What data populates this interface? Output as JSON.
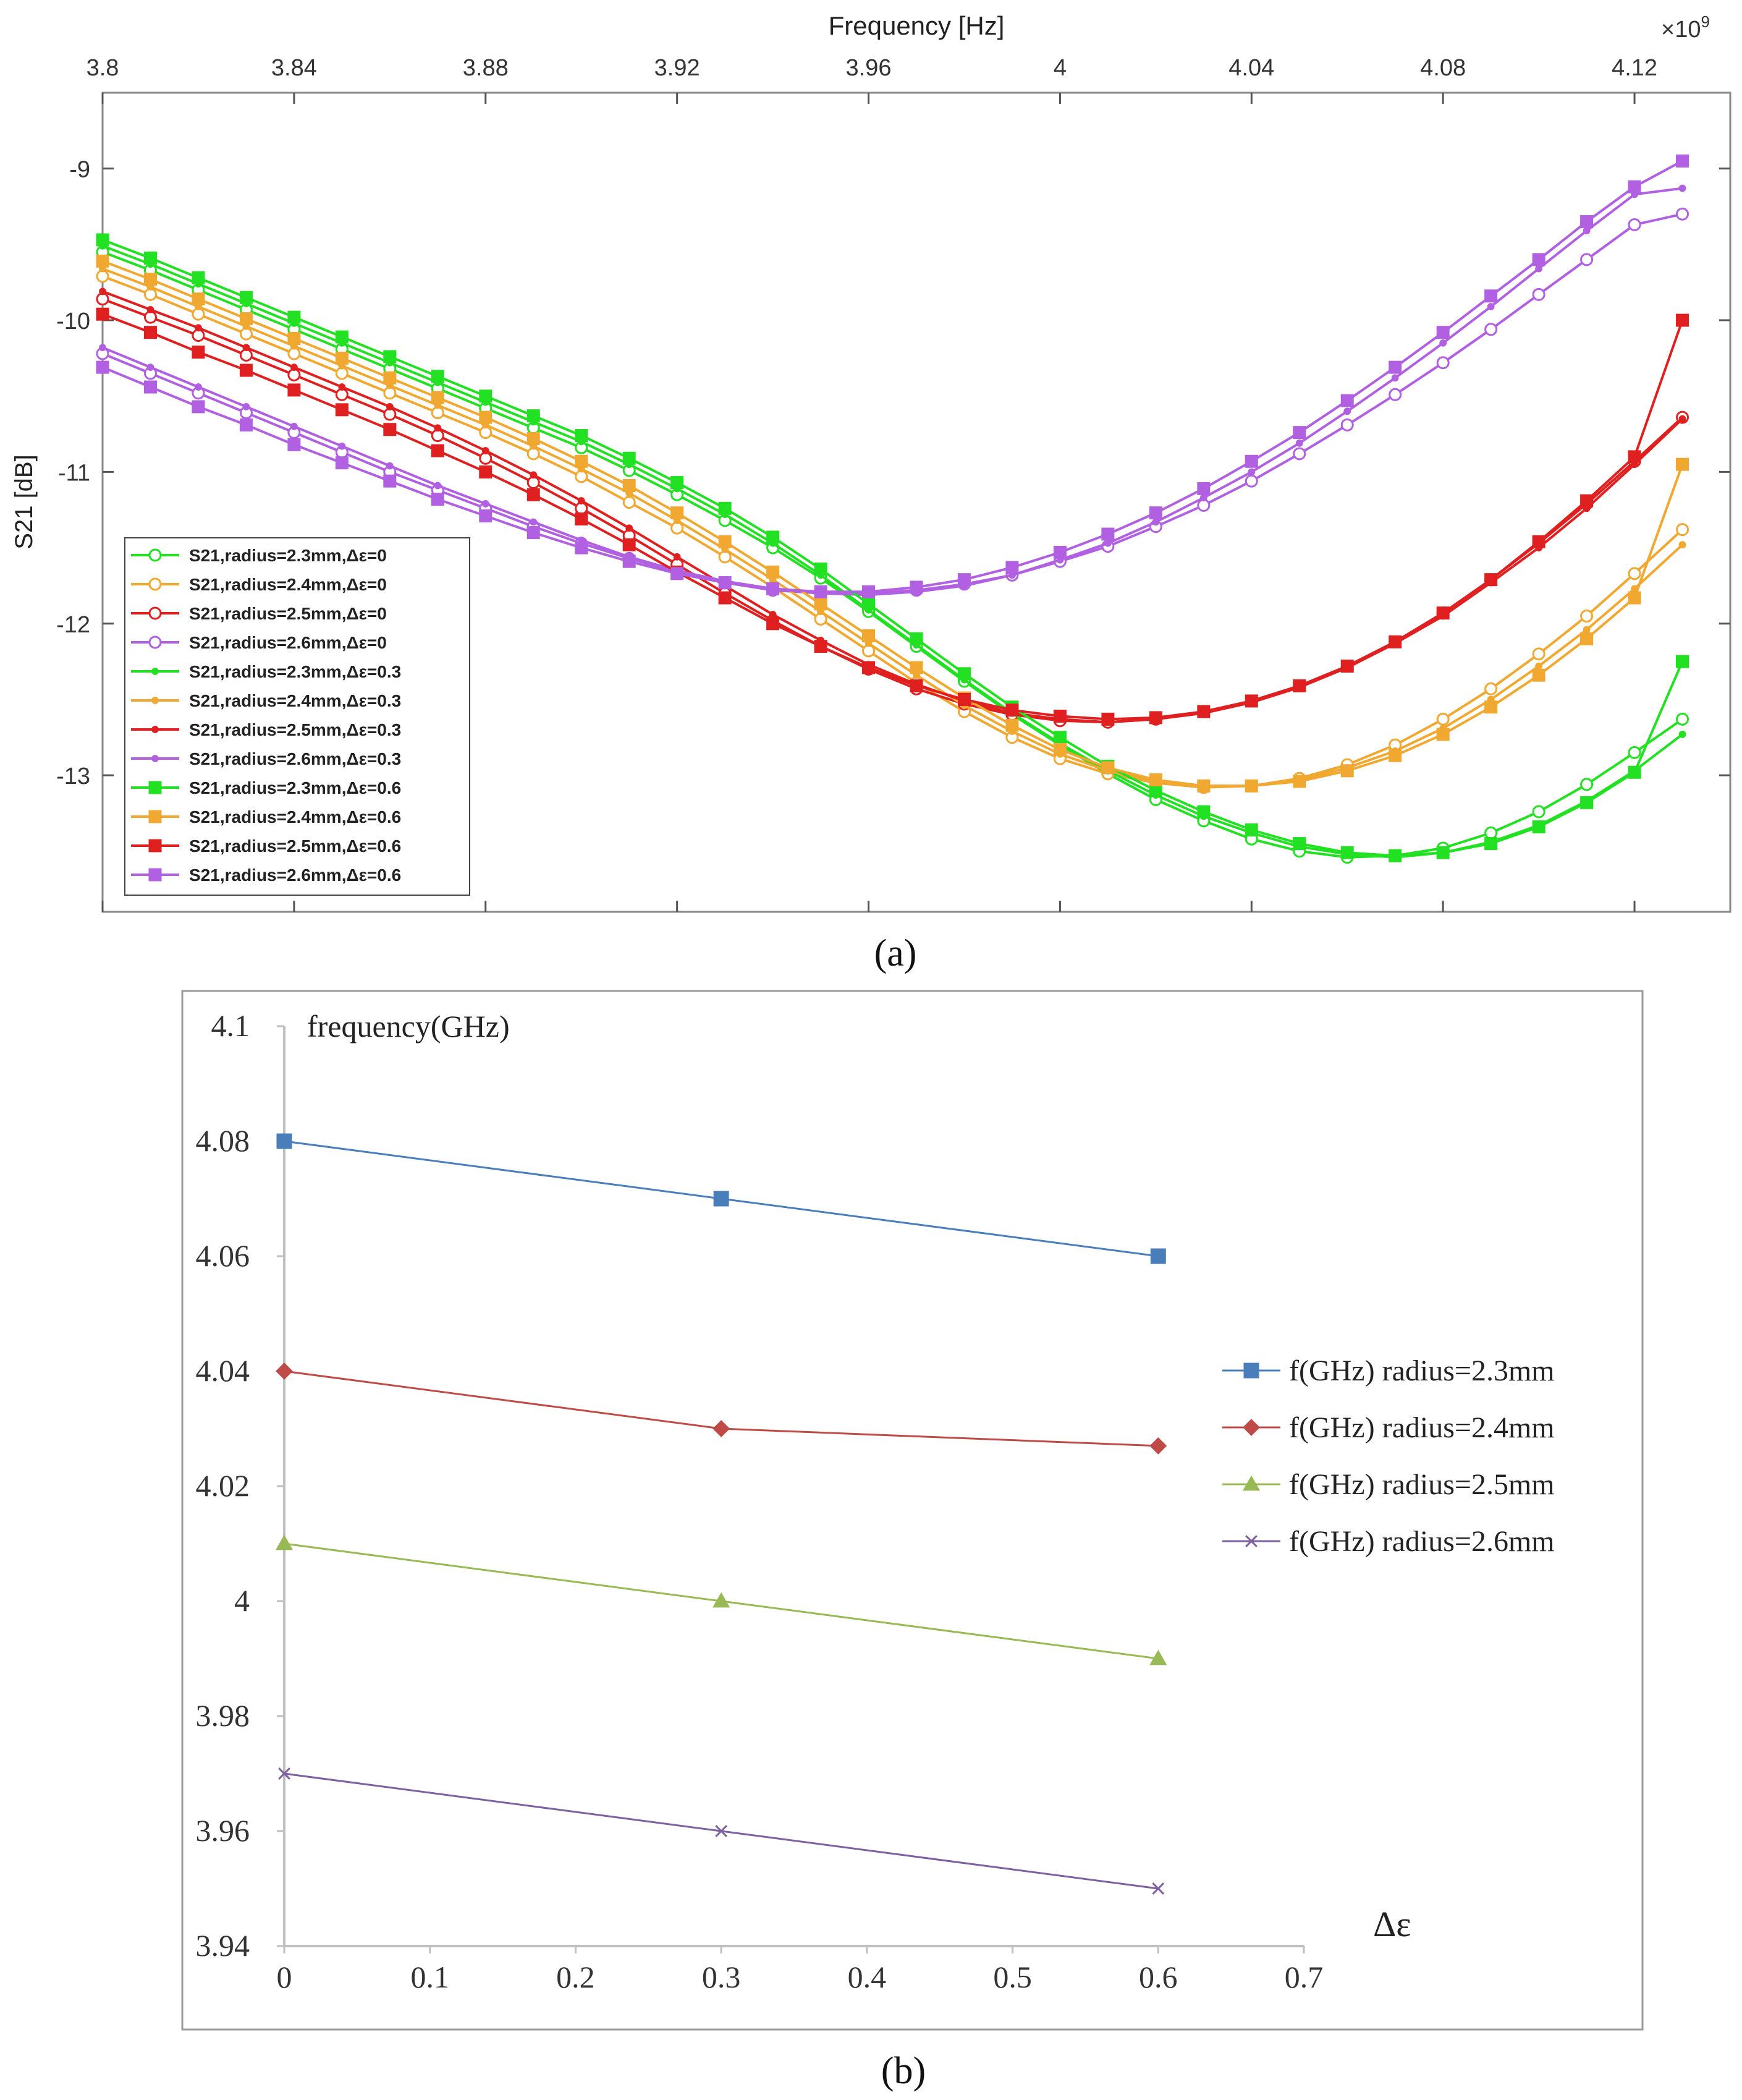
{
  "chart_data": [
    {
      "panel": "(a)",
      "type": "line",
      "xlabel": "Frequency [Hz]",
      "ylabel": "S21 [dB]",
      "x_multiplier_label": "×10",
      "x_multiplier_exp": "9",
      "xlim": [
        3.8,
        4.14
      ],
      "ylim": [
        -13.9,
        -8.5
      ],
      "x_ticks": [
        "3.8",
        "3.84",
        "3.88",
        "3.92",
        "3.96",
        "4",
        "4.04",
        "4.08",
        "4.12"
      ],
      "y_ticks": [
        "-9",
        "-10",
        "-11",
        "-12",
        "-13"
      ],
      "grid": false,
      "legend_position": "bottom-left",
      "x_start": 3.8,
      "x_step": 0.01,
      "series": [
        {
          "name": "S21,radius=2.3mm,Δε=0",
          "color": "#22e022",
          "marker": "circle",
          "values": [
            -9.55,
            -9.67,
            -9.8,
            -9.93,
            -10.06,
            -10.19,
            -10.32,
            -10.45,
            -10.58,
            -10.71,
            -10.84,
            -10.99,
            -11.15,
            -11.32,
            -11.5,
            -11.7,
            -11.92,
            -12.15,
            -12.38,
            -12.6,
            -12.8,
            -12.99,
            -13.16,
            -13.3,
            -13.42,
            -13.5,
            -13.54,
            -13.53,
            -13.48,
            -13.38,
            -13.24,
            -13.06,
            -12.85,
            -12.63
          ]
        },
        {
          "name": "S21,radius=2.4mm,Δε=0",
          "color": "#f0a830",
          "marker": "circle",
          "values": [
            -9.71,
            -9.83,
            -9.96,
            -10.09,
            -10.22,
            -10.35,
            -10.48,
            -10.61,
            -10.74,
            -10.88,
            -11.03,
            -11.2,
            -11.37,
            -11.56,
            -11.76,
            -11.97,
            -12.18,
            -12.39,
            -12.58,
            -12.75,
            -12.89,
            -12.99,
            -13.05,
            -13.08,
            -13.07,
            -13.02,
            -12.93,
            -12.8,
            -12.63,
            -12.43,
            -12.2,
            -11.95,
            -11.67,
            -11.38
          ]
        },
        {
          "name": "S21,radius=2.5mm,Δε=0",
          "color": "#e02020",
          "marker": "circle",
          "values": [
            -9.86,
            -9.98,
            -10.1,
            -10.23,
            -10.36,
            -10.49,
            -10.62,
            -10.76,
            -10.91,
            -11.07,
            -11.24,
            -11.42,
            -11.61,
            -11.8,
            -11.98,
            -12.15,
            -12.3,
            -12.43,
            -12.53,
            -12.6,
            -12.64,
            -12.65,
            -12.63,
            -12.58,
            -12.51,
            -12.41,
            -12.28,
            -12.12,
            -11.93,
            -11.71,
            -11.47,
            -11.21,
            -10.93,
            -10.64
          ]
        },
        {
          "name": "S21,radius=2.6mm,Δε=0",
          "color": "#b060e0",
          "marker": "circle",
          "values": [
            -10.22,
            -10.35,
            -10.48,
            -10.61,
            -10.74,
            -10.87,
            -11.0,
            -11.12,
            -11.24,
            -11.36,
            -11.47,
            -11.57,
            -11.66,
            -11.73,
            -11.78,
            -11.8,
            -11.8,
            -11.78,
            -11.74,
            -11.68,
            -11.59,
            -11.49,
            -11.36,
            -11.22,
            -11.06,
            -10.88,
            -10.69,
            -10.49,
            -10.28,
            -10.06,
            -9.83,
            -9.6,
            -9.37,
            -9.3
          ]
        },
        {
          "name": "S21,radius=2.3mm,Δε=0.3",
          "color": "#22e022",
          "marker": "dot",
          "values": [
            -9.51,
            -9.63,
            -9.76,
            -9.89,
            -10.02,
            -10.15,
            -10.28,
            -10.41,
            -10.54,
            -10.67,
            -10.8,
            -10.95,
            -11.11,
            -11.28,
            -11.47,
            -11.68,
            -11.91,
            -12.14,
            -12.37,
            -12.59,
            -12.79,
            -12.97,
            -13.13,
            -13.27,
            -13.38,
            -13.47,
            -13.52,
            -13.54,
            -13.51,
            -13.44,
            -13.33,
            -13.17,
            -12.97,
            -12.73
          ]
        },
        {
          "name": "S21,radius=2.4mm,Δε=0.3",
          "color": "#f0a830",
          "marker": "dot",
          "values": [
            -9.66,
            -9.78,
            -9.91,
            -10.04,
            -10.17,
            -10.3,
            -10.43,
            -10.56,
            -10.69,
            -10.83,
            -10.98,
            -11.14,
            -11.32,
            -11.51,
            -11.71,
            -11.92,
            -12.13,
            -12.34,
            -12.54,
            -12.71,
            -12.86,
            -12.97,
            -13.04,
            -13.07,
            -13.07,
            -13.03,
            -12.95,
            -12.84,
            -12.69,
            -12.5,
            -12.28,
            -12.04,
            -11.77,
            -11.48
          ]
        },
        {
          "name": "S21,radius=2.5mm,Δε=0.3",
          "color": "#e02020",
          "marker": "dot",
          "values": [
            -9.81,
            -9.93,
            -10.05,
            -10.18,
            -10.31,
            -10.44,
            -10.57,
            -10.71,
            -10.86,
            -11.02,
            -11.19,
            -11.37,
            -11.56,
            -11.75,
            -11.94,
            -12.11,
            -12.27,
            -12.4,
            -12.51,
            -12.59,
            -12.63,
            -12.65,
            -12.63,
            -12.59,
            -12.52,
            -12.42,
            -12.29,
            -12.13,
            -11.95,
            -11.73,
            -11.5,
            -11.24,
            -10.95,
            -10.65
          ]
        },
        {
          "name": "S21,radius=2.6mm,Δε=0.3",
          "color": "#b060e0",
          "marker": "dot",
          "values": [
            -10.18,
            -10.31,
            -10.44,
            -10.57,
            -10.7,
            -10.83,
            -10.96,
            -11.09,
            -11.21,
            -11.33,
            -11.45,
            -11.56,
            -11.65,
            -11.72,
            -11.77,
            -11.8,
            -11.81,
            -11.79,
            -11.75,
            -11.68,
            -11.58,
            -11.47,
            -11.33,
            -11.17,
            -11.0,
            -10.81,
            -10.6,
            -10.38,
            -10.15,
            -9.91,
            -9.66,
            -9.41,
            -9.17,
            -9.13
          ]
        },
        {
          "name": "S21,radius=2.3mm,Δε=0.6",
          "color": "#22e022",
          "marker": "square",
          "values": [
            -9.47,
            -9.59,
            -9.72,
            -9.85,
            -9.98,
            -10.11,
            -10.24,
            -10.37,
            -10.5,
            -10.63,
            -10.76,
            -10.91,
            -11.07,
            -11.24,
            -11.43,
            -11.64,
            -11.87,
            -12.1,
            -12.33,
            -12.55,
            -12.75,
            -12.94,
            -13.1,
            -13.24,
            -13.36,
            -13.45,
            -13.51,
            -13.53,
            -13.51,
            -13.45,
            -13.34,
            -13.18,
            -12.98,
            -12.25
          ]
        },
        {
          "name": "S21,radius=2.4mm,Δε=0.6",
          "color": "#f0a830",
          "marker": "square",
          "values": [
            -9.61,
            -9.73,
            -9.86,
            -9.99,
            -10.12,
            -10.25,
            -10.38,
            -10.51,
            -10.64,
            -10.78,
            -10.93,
            -11.09,
            -11.27,
            -11.46,
            -11.66,
            -11.87,
            -12.08,
            -12.29,
            -12.49,
            -12.67,
            -12.83,
            -12.95,
            -13.03,
            -13.07,
            -13.07,
            -13.04,
            -12.97,
            -12.87,
            -12.73,
            -12.55,
            -12.34,
            -12.1,
            -11.83,
            -10.95
          ]
        },
        {
          "name": "S21,radius=2.5mm,Δε=0.6",
          "color": "#e02020",
          "marker": "square",
          "values": [
            -9.96,
            -10.08,
            -10.21,
            -10.33,
            -10.46,
            -10.59,
            -10.72,
            -10.86,
            -11.0,
            -11.15,
            -11.31,
            -11.48,
            -11.66,
            -11.83,
            -12.0,
            -12.15,
            -12.29,
            -12.41,
            -12.5,
            -12.57,
            -12.61,
            -12.63,
            -12.62,
            -12.58,
            -12.51,
            -12.41,
            -12.28,
            -12.12,
            -11.93,
            -11.71,
            -11.46,
            -11.19,
            -10.9,
            -10.0
          ]
        },
        {
          "name": "S21,radius=2.6mm,Δε=0.6",
          "color": "#b060e0",
          "marker": "square",
          "values": [
            -10.31,
            -10.44,
            -10.57,
            -10.69,
            -10.82,
            -10.94,
            -11.06,
            -11.18,
            -11.29,
            -11.4,
            -11.5,
            -11.59,
            -11.67,
            -11.73,
            -11.77,
            -11.79,
            -11.79,
            -11.76,
            -11.71,
            -11.63,
            -11.53,
            -11.41,
            -11.27,
            -11.11,
            -10.93,
            -10.74,
            -10.53,
            -10.31,
            -10.08,
            -9.84,
            -9.6,
            -9.35,
            -9.12,
            -8.95
          ]
        }
      ]
    },
    {
      "panel": "(b)",
      "type": "line",
      "xlabel": "Δε",
      "ylabel": "frequency(GHz)",
      "xlim": [
        0,
        0.7
      ],
      "ylim": [
        3.94,
        4.1
      ],
      "x_ticks": [
        "0",
        "0.1",
        "0.2",
        "0.3",
        "0.4",
        "0.5",
        "0.6",
        "0.7"
      ],
      "y_ticks": [
        "4.1",
        "4.08",
        "4.06",
        "4.04",
        "4.02",
        "4",
        "3.98",
        "3.96",
        "3.94"
      ],
      "grid": false,
      "legend_position": "right",
      "x": [
        0,
        0.3,
        0.6
      ],
      "series": [
        {
          "name": "f(GHz) radius=2.3mm",
          "color": "#4a7ebb",
          "marker": "square",
          "values": [
            4.08,
            4.07,
            4.06
          ]
        },
        {
          "name": "f(GHz) radius=2.4mm",
          "color": "#be4b48",
          "marker": "diamond",
          "values": [
            4.04,
            4.03,
            4.027
          ]
        },
        {
          "name": "f(GHz) radius=2.5mm",
          "color": "#98b954",
          "marker": "triangle",
          "values": [
            4.01,
            4.0,
            3.99
          ]
        },
        {
          "name": "f(GHz) radius=2.6mm",
          "color": "#7d60a0",
          "marker": "x",
          "values": [
            3.97,
            3.96,
            3.95
          ]
        }
      ]
    }
  ]
}
